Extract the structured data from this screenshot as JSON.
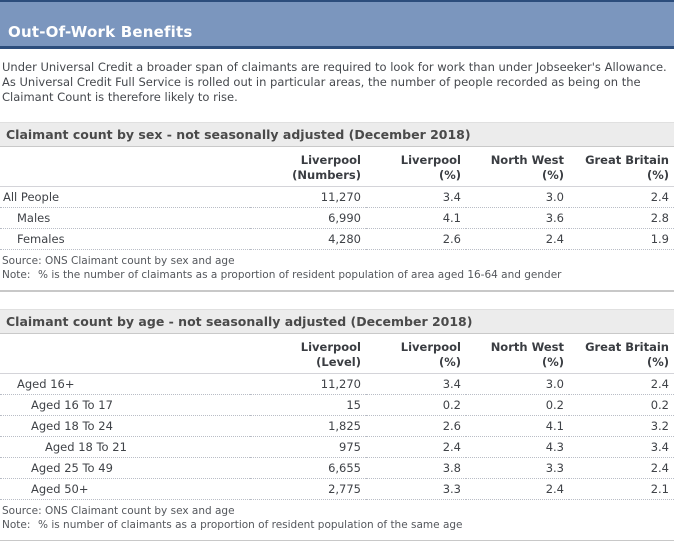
{
  "page": {
    "title": "Out-Of-Work Benefits",
    "intro_lines": [
      "Under Universal Credit a broader span of claimants are required to look for work than under Jobseeker's Allowance.",
      "As Universal Credit Full Service is rolled out in particular areas, the number of people recorded as being on the",
      "Claimant Count is therefore likely to rise."
    ]
  },
  "colors": {
    "header_bar": "#7B96BE",
    "header_border": "#2C4D7C",
    "section_bar_bg": "#ECECEC",
    "divider": "#C8C8C8"
  },
  "tables": [
    {
      "title": "Claimant count by sex - not seasonally adjusted (December 2018)",
      "columns": [
        {
          "line1": "Liverpool",
          "line2": "(Numbers)"
        },
        {
          "line1": "Liverpool",
          "line2": "(%)"
        },
        {
          "line1": "North West",
          "line2": "(%)"
        },
        {
          "line1": "Great Britain",
          "line2": "(%)"
        }
      ],
      "rows": [
        {
          "label": "All People",
          "values": [
            "11,270",
            "3.4",
            "3.0",
            "2.4"
          ]
        },
        {
          "label": "Males",
          "values": [
            "6,990",
            "4.1",
            "3.6",
            "2.8"
          ]
        },
        {
          "label": "Females",
          "values": [
            "4,280",
            "2.6",
            "2.4",
            "1.9"
          ]
        }
      ],
      "source": "Source: ONS Claimant count by sex and age",
      "note_label": "Note:",
      "note": "% is the number of claimants as a proportion of resident population of area aged 16-64 and gender"
    },
    {
      "title": "Claimant count by age - not seasonally adjusted (December 2018)",
      "columns": [
        {
          "line1": "Liverpool",
          "line2": "(Level)"
        },
        {
          "line1": "Liverpool",
          "line2": "(%)"
        },
        {
          "line1": "North West",
          "line2": "(%)"
        },
        {
          "line1": "Great Britain",
          "line2": "(%)"
        }
      ],
      "rows": [
        {
          "label": "Aged 16+",
          "values": [
            "11,270",
            "3.4",
            "3.0",
            "2.4"
          ]
        },
        {
          "label": "Aged 16 To 17",
          "values": [
            "15",
            "0.2",
            "0.2",
            "0.2"
          ]
        },
        {
          "label": "Aged 18 To 24",
          "values": [
            "1,825",
            "2.6",
            "4.1",
            "3.2"
          ]
        },
        {
          "label": "Aged 18 To 21",
          "values": [
            "975",
            "2.4",
            "4.3",
            "3.4"
          ]
        },
        {
          "label": "Aged 25 To 49",
          "values": [
            "6,655",
            "3.8",
            "3.3",
            "2.4"
          ]
        },
        {
          "label": "Aged 50+",
          "values": [
            "2,775",
            "3.3",
            "2.4",
            "2.1"
          ]
        }
      ],
      "source": "Source: ONS Claimant count by sex and age",
      "note_label": "Note:",
      "note": "% is number of claimants as a proportion of resident population of the same age"
    }
  ]
}
